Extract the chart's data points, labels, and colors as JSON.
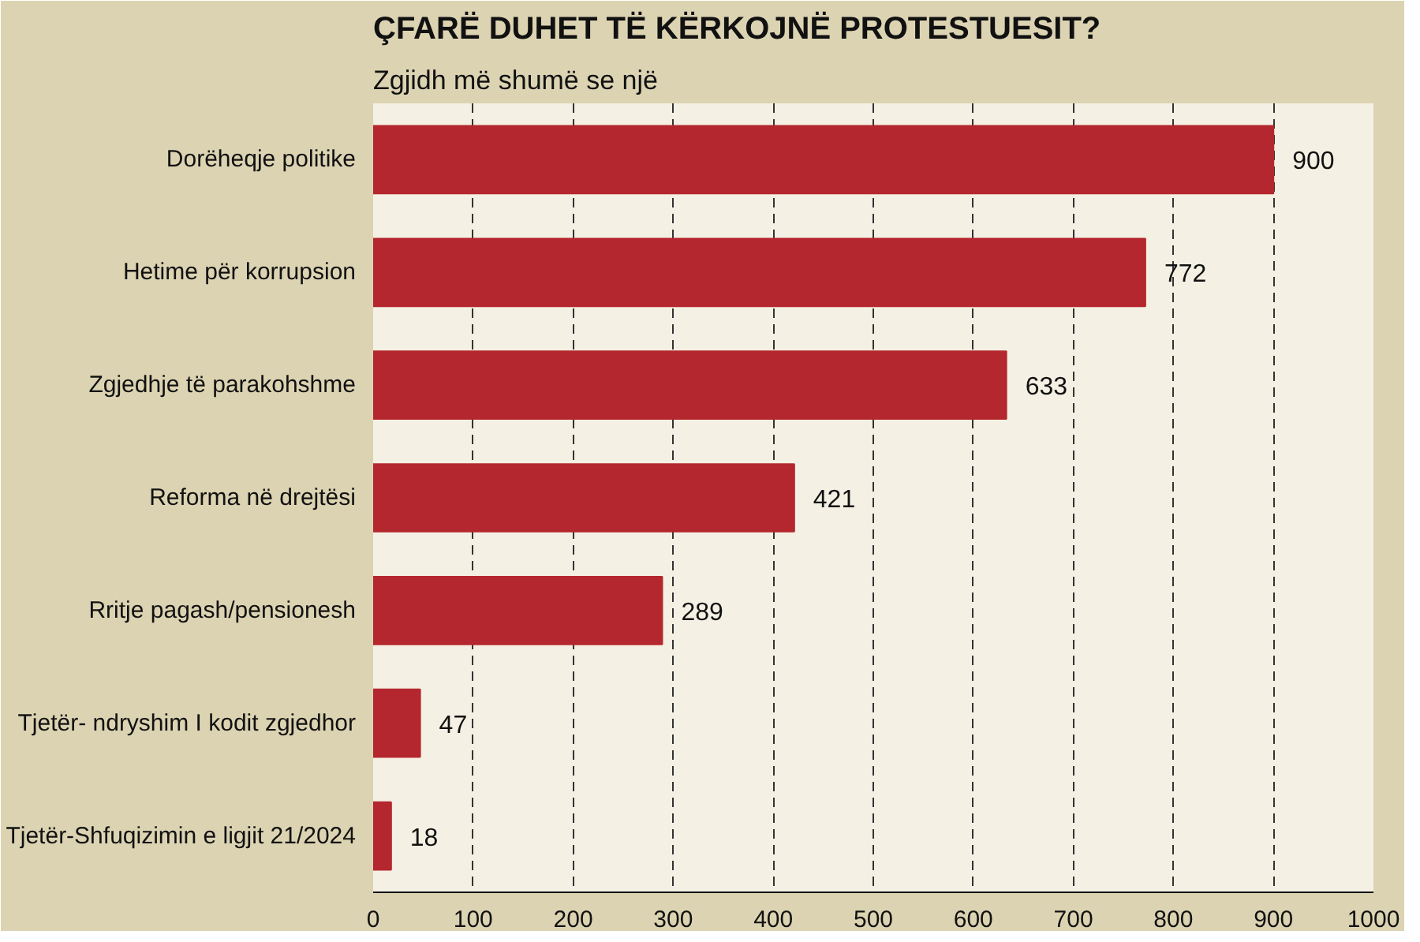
{
  "chart_data": {
    "type": "bar",
    "orientation": "horizontal",
    "title": "ÇFARË DUHET TË KËRKOJNË PROTESTUESIT?",
    "subtitle": "Zgjidh më shumë se një",
    "categories": [
      "Dorëheqje politike",
      "Hetime për korrupsion",
      "Zgjedhje të parakohshme",
      "Reforma në drejtësi",
      "Rritje pagash/pensionesh",
      "Tjetër- ndryshim I kodit zgjedhor",
      "Tjetër-Shfuqizimin e ligjit 21/2024"
    ],
    "values": [
      900,
      772,
      633,
      421,
      289,
      47,
      18
    ],
    "color": "#b5272e",
    "data_labels": true,
    "grid": "x",
    "xlim": [
      0,
      1000
    ],
    "xticks": [
      0,
      100,
      200,
      300,
      400,
      500,
      600,
      700,
      800,
      900,
      1000
    ]
  }
}
